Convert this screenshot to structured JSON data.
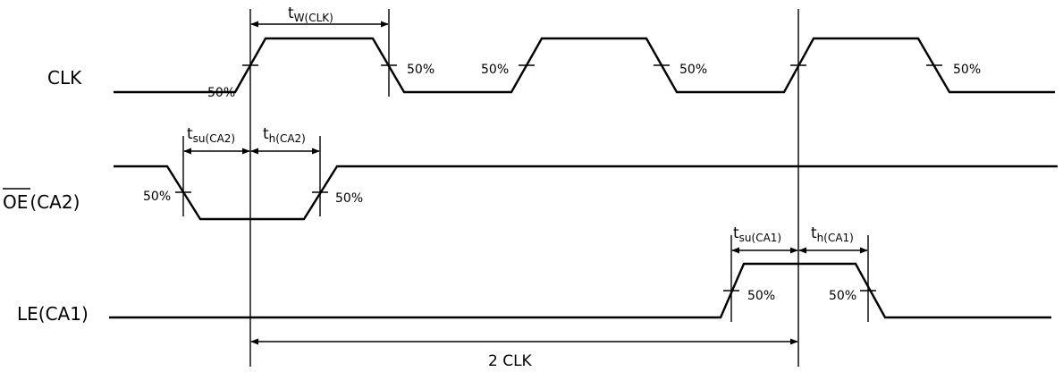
{
  "signals": {
    "clk": "CLK",
    "oe_bar": "OE",
    "oe_suffix": "(CA2)",
    "le": "LE(CA1)"
  },
  "percent_label": "50%",
  "timing": {
    "tw_clk": {
      "main": "t",
      "sub": "W(CLK)"
    },
    "tsu_ca2": {
      "main": "t",
      "sub": "su(CA2)"
    },
    "th_ca2": {
      "main": "t",
      "sub": "h(CA2)"
    },
    "tsu_ca1": {
      "main": "t",
      "sub": "su(CA1)"
    },
    "th_ca1": {
      "main": "t",
      "sub": "h(CA1)"
    }
  },
  "span_label": "2 CLK"
}
